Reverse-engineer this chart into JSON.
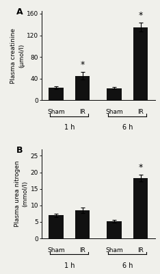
{
  "panel_A": {
    "label": "A",
    "ylabel_line1": "Plasma creatinine",
    "ylabel_line2": "(μmol/l)",
    "bars": [
      {
        "value": 23,
        "error": 2,
        "sig": false
      },
      {
        "value": 45,
        "error": 7,
        "sig": true
      },
      {
        "value": 22,
        "error": 2,
        "sig": false
      },
      {
        "value": 135,
        "error": 8,
        "sig": true
      }
    ],
    "ylim": [
      0,
      165
    ],
    "yticks": [
      0,
      40,
      80,
      120,
      160
    ],
    "group_labels": [
      "Sham",
      "IR",
      "Sham",
      "IR"
    ],
    "time_labels": [
      "1 h",
      "6 h"
    ]
  },
  "panel_B": {
    "label": "B",
    "ylabel_line1": "Plasma urea nitrogen",
    "ylabel_line2": "(mmol/l)",
    "bars": [
      {
        "value": 7.0,
        "error": 0.5,
        "sig": false
      },
      {
        "value": 8.5,
        "error": 0.8,
        "sig": false
      },
      {
        "value": 5.2,
        "error": 0.4,
        "sig": false
      },
      {
        "value": 18.2,
        "error": 1.0,
        "sig": true
      }
    ],
    "ylim": [
      0,
      27
    ],
    "yticks": [
      0,
      5,
      10,
      15,
      20,
      25
    ],
    "group_labels": [
      "Sham",
      "IR",
      "Sham",
      "IR"
    ],
    "time_labels": [
      "1 h",
      "6 h"
    ]
  },
  "bar_color": "#111111",
  "background_color": "#f0f0eb",
  "bar_width": 0.55,
  "positions": [
    0,
    1.0,
    2.2,
    3.2
  ],
  "xlim": [
    -0.55,
    3.75
  ],
  "fontsize_label": 6.5,
  "fontsize_tick": 6.5,
  "fontsize_sig": 9,
  "fontsize_panel": 9,
  "fontsize_group": 6.5,
  "fontsize_time": 7.0
}
